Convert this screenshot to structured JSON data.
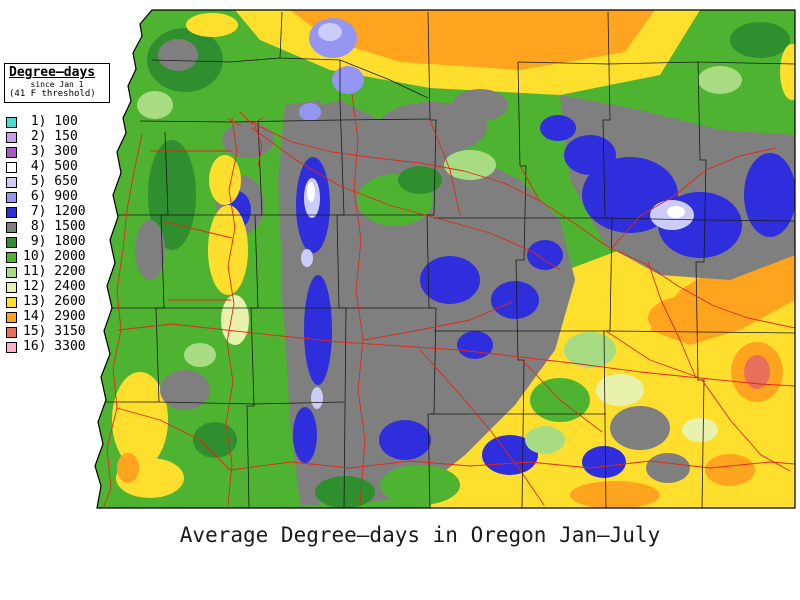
{
  "title": "Average Degree—days in Oregon Jan—July",
  "legend": {
    "title": "Degree—days",
    "subtitle_line1": "since Jan 1",
    "subtitle_line2": "(41 F threshold)",
    "items": [
      {
        "rank": 1,
        "value": 100,
        "label": " 1) 100",
        "color": "#44DED6"
      },
      {
        "rank": 2,
        "value": 150,
        "label": " 2) 150",
        "color": "#C9A0EE"
      },
      {
        "rank": 3,
        "value": 300,
        "label": " 3) 300",
        "color": "#A858C0"
      },
      {
        "rank": 4,
        "value": 500,
        "label": " 4) 500",
        "color": "#FFFFFF"
      },
      {
        "rank": 5,
        "value": 650,
        "label": " 5) 650",
        "color": "#CCCCFA"
      },
      {
        "rank": 6,
        "value": 900,
        "label": " 6) 900",
        "color": "#9595F2"
      },
      {
        "rank": 7,
        "value": 1200,
        "label": " 7) 1200",
        "color": "#2E2EDC"
      },
      {
        "rank": 8,
        "value": 1500,
        "label": " 8) 1500",
        "color": "#7F7F7F"
      },
      {
        "rank": 9,
        "value": 1800,
        "label": " 9) 1800",
        "color": "#2F8F2F"
      },
      {
        "rank": 10,
        "value": 2000,
        "label": "10) 2000",
        "color": "#4FB332"
      },
      {
        "rank": 11,
        "value": 2200,
        "label": "11) 2200",
        "color": "#A8DC82"
      },
      {
        "rank": 12,
        "value": 2400,
        "label": "12) 2400",
        "color": "#E8F2AC"
      },
      {
        "rank": 13,
        "value": 2600,
        "label": "13) 2600",
        "color": "#FFDF2E"
      },
      {
        "rank": 14,
        "value": 2900,
        "label": "14) 2900",
        "color": "#FFA41E"
      },
      {
        "rank": 15,
        "value": 3150,
        "label": "15) 3150",
        "color": "#E8705A"
      },
      {
        "rank": 16,
        "value": 3300,
        "label": "16) 3300",
        "color": "#FFAFC8"
      }
    ]
  },
  "map": {
    "region": "Oregon",
    "county_boundary_color": "#1A1A1A",
    "road_color": "#E02818",
    "ocean_color": "#FFFFFF"
  }
}
